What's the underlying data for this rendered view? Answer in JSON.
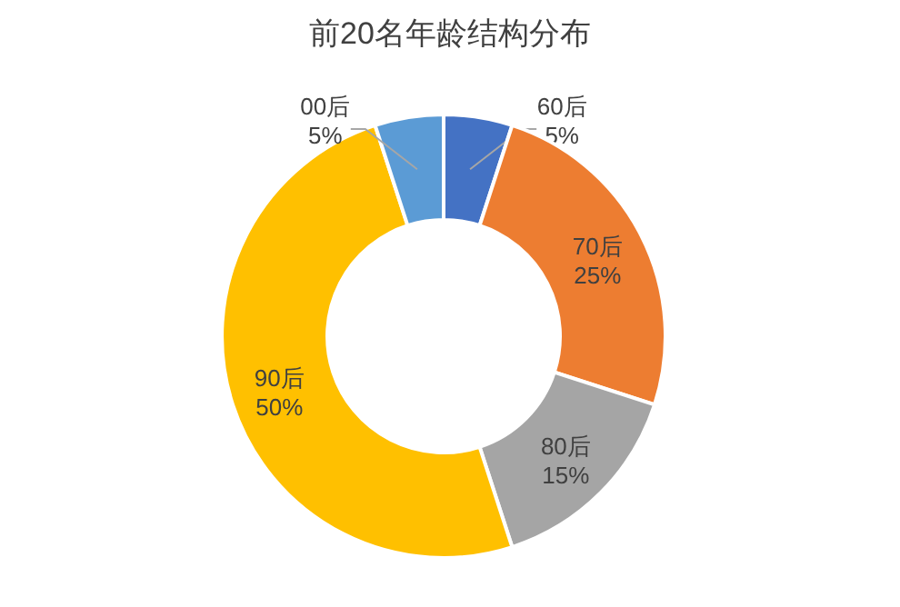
{
  "chart_data": {
    "type": "donut",
    "title": "前20名年龄结构分布",
    "categories": [
      "60后",
      "70后",
      "80后",
      "90后",
      "00后"
    ],
    "values": [
      5,
      25,
      15,
      50,
      5
    ],
    "colors": [
      "#4472c4",
      "#ed7d31",
      "#a5a5a5",
      "#ffc000",
      "#5b9bd5"
    ],
    "value_labels": [
      "5%",
      "25%",
      "15%",
      "50%",
      "5%"
    ]
  }
}
